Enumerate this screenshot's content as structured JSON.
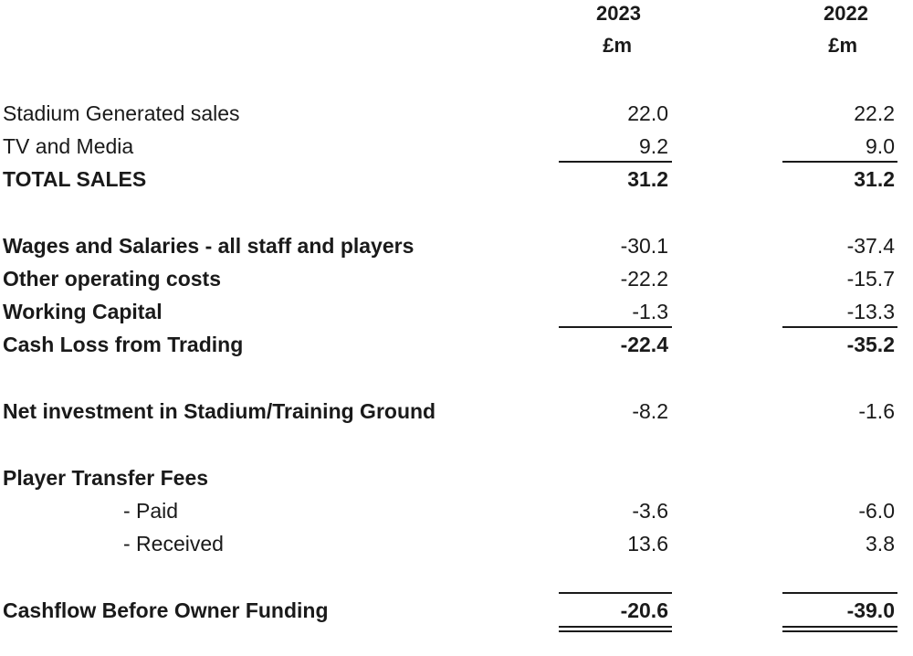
{
  "header": {
    "year_2023": "2023",
    "year_2022": "2022",
    "unit_2023": "£m",
    "unit_2022": "£m"
  },
  "rows": [
    {
      "label": "Stadium Generated sales",
      "v2023": "22.0",
      "v2022": "22.2"
    },
    {
      "label": "TV and Media",
      "v2023": "9.2",
      "v2022": "9.0"
    },
    {
      "label": "TOTAL SALES",
      "v2023": "31.2",
      "v2022": "31.2"
    },
    {
      "label": "Wages and Salaries - all staff and players",
      "v2023": "-30.1",
      "v2022": "-37.4"
    },
    {
      "label": "Other operating costs",
      "v2023": "-22.2",
      "v2022": "-15.7"
    },
    {
      "label": "Working Capital",
      "v2023": "-1.3",
      "v2022": "-13.3"
    },
    {
      "label": "Cash Loss from Trading",
      "v2023": "-22.4",
      "v2022": "-35.2"
    },
    {
      "label": "Net investment in Stadium/Training Ground",
      "v2023": "-8.2",
      "v2022": "-1.6"
    },
    {
      "label": "Player Transfer Fees",
      "v2023": "",
      "v2022": ""
    },
    {
      "label": "- Paid",
      "v2023": "-3.6",
      "v2022": "-6.0"
    },
    {
      "label": "- Received",
      "v2023": "13.6",
      "v2022": "3.8"
    },
    {
      "label": "Cashflow Before Owner Funding",
      "v2023": "-20.6",
      "v2022": "-39.0"
    }
  ]
}
